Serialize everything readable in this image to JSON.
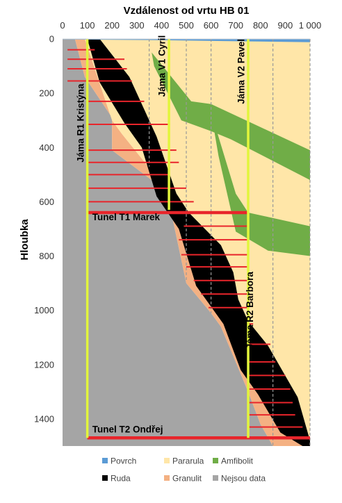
{
  "chart_data": {
    "type": "area",
    "title": "Vzdálenost od vrtu HB 01",
    "xlabel": "",
    "ylabel": "Hloubka",
    "xlim": [
      0,
      1000
    ],
    "ylim": [
      0,
      1500
    ],
    "y_inverted": true,
    "x_axis_position": "top",
    "x_ticks": [
      "0",
      "100",
      "200",
      "300",
      "400",
      "500",
      "600",
      "700",
      "800",
      "900",
      "1 000"
    ],
    "y_ticks": [
      "0",
      "200",
      "400",
      "600",
      "800",
      "1000",
      "1200",
      "1400"
    ],
    "grid": false,
    "legend_position": "bottom",
    "colors": {
      "Povrch": "#5b9bd5",
      "Pararula": "#ffe6a8",
      "Amfibolit": "#70ad47",
      "Ruda": "#000000",
      "Granulit": "#f4b183",
      "Nejsou data": "#a5a5a5",
      "shaft": "#e2f53c",
      "tunnel": "#e8252b",
      "guide": "#999999"
    },
    "series": [
      {
        "name": "Nejsou data",
        "polygon": [
          [
            0,
            0
          ],
          [
            0,
            1500
          ],
          [
            850,
            1500
          ],
          [
            800,
            1420
          ],
          [
            750,
            1300
          ],
          [
            640,
            1060
          ],
          [
            600,
            1010
          ],
          [
            500,
            900
          ],
          [
            430,
            600
          ],
          [
            360,
            520
          ],
          [
            200,
            410
          ],
          [
            200,
            290
          ],
          [
            90,
            140
          ],
          [
            50,
            0
          ]
        ]
      },
      {
        "name": "Granulit",
        "polygon": [
          [
            1000,
            1500
          ],
          [
            850,
            1500
          ],
          [
            800,
            1420
          ],
          [
            750,
            1300
          ],
          [
            640,
            1060
          ],
          [
            600,
            1010
          ],
          [
            500,
            900
          ],
          [
            430,
            600
          ],
          [
            360,
            520
          ],
          [
            200,
            410
          ],
          [
            200,
            290
          ],
          [
            90,
            140
          ],
          [
            50,
            0
          ],
          [
            90,
            0
          ],
          [
            200,
            300
          ],
          [
            240,
            350
          ],
          [
            460,
            600
          ],
          [
            560,
            880
          ],
          [
            690,
            1080
          ],
          [
            800,
            1300
          ]
        ]
      },
      {
        "name": "Pararula",
        "polygon": [
          [
            1000,
            0
          ],
          [
            1000,
            1500
          ],
          [
            800,
            1300
          ],
          [
            690,
            1080
          ],
          [
            560,
            880
          ],
          [
            460,
            600
          ],
          [
            240,
            350
          ],
          [
            200,
            300
          ],
          [
            90,
            0
          ]
        ]
      },
      {
        "name": "Ruda",
        "polygon": [
          [
            100,
            0
          ],
          [
            150,
            0
          ],
          [
            270,
            140
          ],
          [
            380,
            360
          ],
          [
            460,
            570
          ],
          [
            510,
            640
          ],
          [
            640,
            760
          ],
          [
            690,
            860
          ],
          [
            710,
            960
          ],
          [
            750,
            1040
          ],
          [
            830,
            1130
          ],
          [
            950,
            1320
          ],
          [
            1000,
            1480
          ],
          [
            1000,
            1500
          ],
          [
            970,
            1500
          ],
          [
            880,
            1450
          ],
          [
            790,
            1310
          ],
          [
            720,
            1220
          ],
          [
            650,
            1050
          ],
          [
            540,
            910
          ],
          [
            470,
            700
          ],
          [
            380,
            580
          ],
          [
            320,
            400
          ],
          [
            250,
            310
          ],
          [
            150,
            160
          ]
        ]
      },
      {
        "name": "Amfibolit",
        "polygon": [
          [
            360,
            50
          ],
          [
            520,
            230
          ],
          [
            600,
            240
          ],
          [
            1000,
            410
          ],
          [
            1000,
            520
          ],
          [
            680,
            370
          ],
          [
            600,
            340
          ],
          [
            480,
            300
          ],
          [
            370,
            100
          ]
        ]
      },
      {
        "name": "Amfibolit",
        "polygon": [
          [
            600,
            270
          ],
          [
            700,
            570
          ],
          [
            750,
            640
          ],
          [
            1000,
            690
          ],
          [
            1000,
            800
          ],
          [
            830,
            780
          ],
          [
            700,
            710
          ],
          [
            630,
            430
          ]
        ]
      },
      {
        "name": "Povrch",
        "polygon": [
          [
            0,
            0
          ],
          [
            1000,
            0
          ],
          [
            1000,
            12
          ],
          [
            650,
            8
          ],
          [
            350,
            4
          ],
          [
            0,
            2
          ]
        ]
      }
    ],
    "guides": [
      {
        "x": 350,
        "y_from": 0,
        "y_to": 470
      },
      {
        "x": 500,
        "y_from": 0,
        "y_to": 890
      },
      {
        "x": 600,
        "y_from": 0,
        "y_to": 1010
      },
      {
        "x": 850,
        "y_from": 0,
        "y_to": 1500
      },
      {
        "x": 1000,
        "y_from": 0,
        "y_to": 1500
      }
    ],
    "shafts": [
      {
        "x": 100,
        "y_from": 0,
        "y_to": 1470,
        "label": "Jáma R1 Kristýna",
        "label_at": [
          85,
          310
        ]
      },
      {
        "x": 430,
        "y_from": 0,
        "y_to": 630,
        "label": "Jáma V1 Cyril",
        "label_at": [
          415,
          100
        ]
      },
      {
        "x": 750,
        "y_from": 0,
        "y_to": 640,
        "label": "Jáma V2 Pavel",
        "label_at": [
          735,
          120
        ]
      },
      {
        "x": 750,
        "y_from": 640,
        "y_to": 1470,
        "label": "Jáma R2 Barbora",
        "label_at": [
          770,
          1000
        ]
      }
    ],
    "tunnels": [
      {
        "y": 640,
        "x_from": 100,
        "x_to": 750,
        "label": "Tunel T1 Marek",
        "label_at": [
          120,
          668
        ]
      },
      {
        "y": 1470,
        "x_from": 100,
        "x_to": 1000,
        "label": "Tunel T2 Ondřej",
        "label_at": [
          120,
          1450
        ]
      }
    ],
    "levels": [
      {
        "y": 40,
        "x_from": 20,
        "x_to": 130
      },
      {
        "y": 75,
        "x_from": 20,
        "x_to": 250
      },
      {
        "y": 110,
        "x_from": 20,
        "x_to": 260
      },
      {
        "y": 155,
        "x_from": 20,
        "x_to": 280
      },
      {
        "y": 230,
        "x_from": 100,
        "x_to": 330
      },
      {
        "y": 315,
        "x_from": 100,
        "x_to": 430
      },
      {
        "y": 410,
        "x_from": 100,
        "x_to": 460
      },
      {
        "y": 455,
        "x_from": 100,
        "x_to": 470
      },
      {
        "y": 500,
        "x_from": 100,
        "x_to": 430
      },
      {
        "y": 550,
        "x_from": 100,
        "x_to": 500
      },
      {
        "y": 600,
        "x_from": 100,
        "x_to": 530
      },
      {
        "y": 690,
        "x_from": 490,
        "x_to": 750
      },
      {
        "y": 740,
        "x_from": 470,
        "x_to": 750
      },
      {
        "y": 795,
        "x_from": 480,
        "x_to": 750
      },
      {
        "y": 840,
        "x_from": 500,
        "x_to": 750
      },
      {
        "y": 890,
        "x_from": 530,
        "x_to": 750
      },
      {
        "y": 940,
        "x_from": 560,
        "x_to": 750
      },
      {
        "y": 990,
        "x_from": 590,
        "x_to": 750
      },
      {
        "y": 1050,
        "x_from": 750,
        "x_to": 770
      },
      {
        "y": 1125,
        "x_from": 750,
        "x_to": 840
      },
      {
        "y": 1190,
        "x_from": 750,
        "x_to": 860
      },
      {
        "y": 1240,
        "x_from": 750,
        "x_to": 900
      },
      {
        "y": 1290,
        "x_from": 750,
        "x_to": 920
      },
      {
        "y": 1340,
        "x_from": 750,
        "x_to": 930
      },
      {
        "y": 1385,
        "x_from": 750,
        "x_to": 940
      },
      {
        "y": 1430,
        "x_from": 750,
        "x_to": 970
      }
    ],
    "legend": [
      "Povrch",
      "Pararula",
      "Amfibolit",
      "Ruda",
      "Granulit",
      "Nejsou data"
    ]
  }
}
